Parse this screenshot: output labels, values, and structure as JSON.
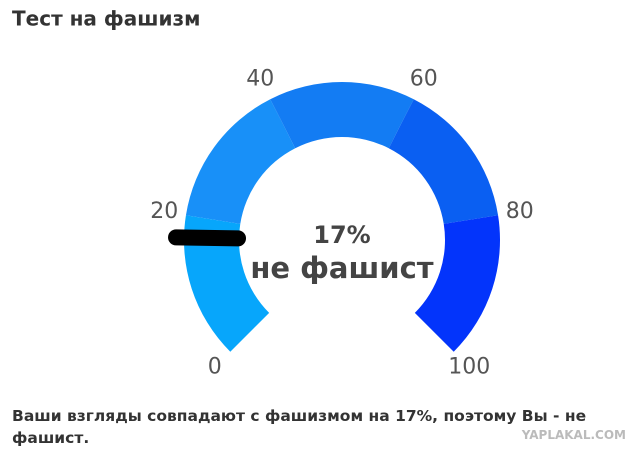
{
  "chart_data": {
    "type": "gauge",
    "title": "Тест на фашизм",
    "values": [
      17
    ],
    "value_labels": [
      "17%"
    ],
    "status": "не фашист",
    "range": [
      0,
      100
    ],
    "ticks": [
      0,
      20,
      40,
      60,
      80,
      100
    ],
    "band_colors": [
      "#07a6fb",
      "#1890f8",
      "#137cf3",
      "#0a5ff2",
      "#0334fb"
    ],
    "needle_color": "#000000"
  },
  "footer": "Ваши взгляды совпадают с фашизмом на 17%, поэтому Вы - не фашист.",
  "watermark": "YAPLAKAL.COM"
}
